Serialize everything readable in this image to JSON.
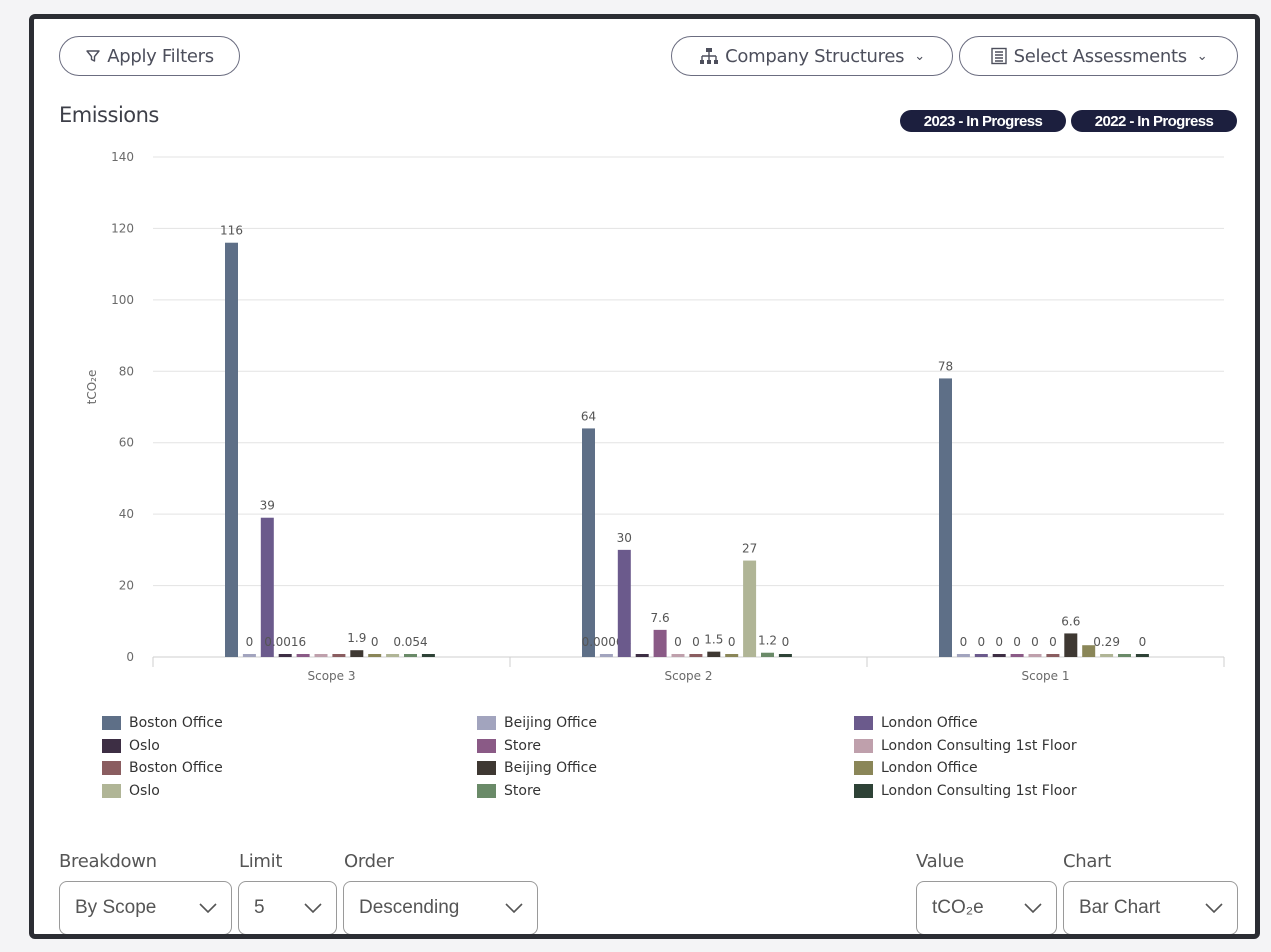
{
  "toolbar": {
    "apply_filters_label": "Apply Filters",
    "company_structures_label": "Company Structures",
    "select_assessments_label": "Select Assessments"
  },
  "section": {
    "title": "Emissions",
    "badges": [
      "2023 - In Progress",
      "2022 - In Progress"
    ]
  },
  "colors": {
    "badge_bg": "#1c1f3e",
    "border": "#2b2d33"
  },
  "chart_data": {
    "type": "bar",
    "title": "Emissions",
    "xlabel": "",
    "ylabel": "tCO₂e",
    "ylim": [
      0,
      140
    ],
    "yticks": [
      0,
      20,
      40,
      60,
      80,
      100,
      120,
      140
    ],
    "grid": true,
    "legend_position": "bottom",
    "categories": [
      "Scope 3",
      "Scope 2",
      "Scope 1"
    ],
    "series": [
      {
        "name": "Boston Office",
        "color": "#5e6f87",
        "values": [
          116,
          64,
          78
        ],
        "labels": [
          "116",
          "64",
          "78"
        ]
      },
      {
        "name": "Beijing Office",
        "color": "#a2a4be",
        "values": [
          0,
          0.00064,
          0
        ],
        "labels": [
          "0",
          "0.00064",
          "0"
        ]
      },
      {
        "name": "London Office",
        "color": "#6b5a8c",
        "values": [
          39,
          30,
          0
        ],
        "labels": [
          "39",
          "30",
          "0"
        ]
      },
      {
        "name": "Oslo",
        "color": "#3d2e44",
        "values": [
          0.0016,
          0,
          0
        ],
        "labels": [
          "0.0016",
          "",
          "0"
        ]
      },
      {
        "name": "Store",
        "color": "#8a5a86",
        "values": [
          0,
          7.6,
          0
        ],
        "labels": [
          "",
          "7.6",
          "0"
        ]
      },
      {
        "name": "London Consulting 1st Floor",
        "color": "#bfa0ac",
        "values": [
          0,
          0,
          0
        ],
        "labels": [
          "",
          "0",
          "0"
        ]
      },
      {
        "name": "Boston Office",
        "color": "#8a5d60",
        "values": [
          0,
          0,
          0
        ],
        "labels": [
          "",
          "0",
          "0"
        ]
      },
      {
        "name": "Beijing Office",
        "color": "#3e3832",
        "values": [
          1.9,
          1.5,
          6.6
        ],
        "labels": [
          "1.9",
          "1.5",
          "6.6"
        ]
      },
      {
        "name": "London Office",
        "color": "#8a8658",
        "values": [
          0,
          0,
          3.3
        ],
        "labels": [
          "0",
          "0",
          ""
        ]
      },
      {
        "name": "Oslo",
        "color": "#b0b596",
        "values": [
          0,
          27,
          0.29
        ],
        "labels": [
          "",
          "27",
          "0.29"
        ]
      },
      {
        "name": "Store",
        "color": "#6a8a68",
        "values": [
          0.054,
          1.2,
          0
        ],
        "labels": [
          "0.054",
          "1.2",
          ""
        ]
      },
      {
        "name": "London Consulting 1st Floor",
        "color": "#2e4236",
        "values": [
          0,
          0,
          0
        ],
        "labels": [
          "",
          "0",
          "0"
        ]
      }
    ]
  },
  "controls": {
    "breakdown": {
      "label": "Breakdown",
      "value": "By Scope"
    },
    "limit": {
      "label": "Limit",
      "value": "5"
    },
    "order": {
      "label": "Order",
      "value": "Descending"
    },
    "value": {
      "label": "Value",
      "value": "tCO₂e"
    },
    "chart": {
      "label": "Chart",
      "value": "Bar Chart"
    }
  }
}
